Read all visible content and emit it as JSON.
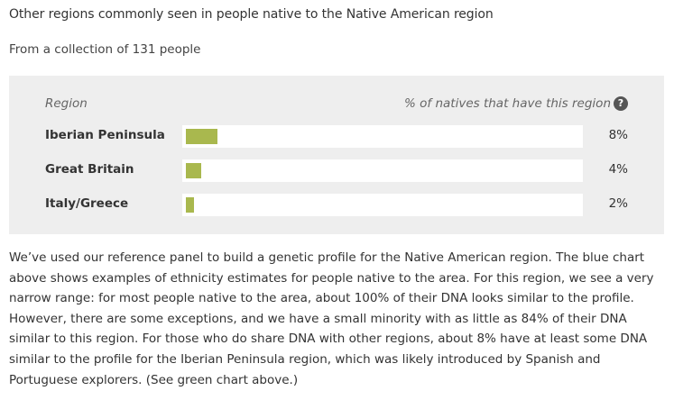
{
  "heading": "Other regions commonly seen in people native to the Native American region",
  "subheading": "From a collection of 131 people",
  "table": {
    "region_header": "Region",
    "percent_header": "% of natives that have this region",
    "help_icon": "question-circle-icon",
    "bar_color": "#a9b84e",
    "rows": [
      {
        "region": "Iberian Peninsula",
        "percent_label": "8%",
        "percent": 8
      },
      {
        "region": "Great Britain",
        "percent_label": "4%",
        "percent": 4
      },
      {
        "region": "Italy/Greece",
        "percent_label": "2%",
        "percent": 2
      }
    ]
  },
  "description": "We’ve used our reference panel to build a genetic profile for the Native American region. The blue chart above shows examples of ethnicity estimates for people native to the area. For this region, we see a very narrow range: for most people native to the area, about 100% of their DNA looks similar to the profile. However, there are some exceptions, and we have a small minority with as little as 84% of their DNA similar to this region. For those who do share DNA with other regions, about 8% have at least some DNA similar to the profile for the Iberian Peninsula region, which was likely introduced by Spanish and Portuguese explorers. (See green chart above.)"
}
